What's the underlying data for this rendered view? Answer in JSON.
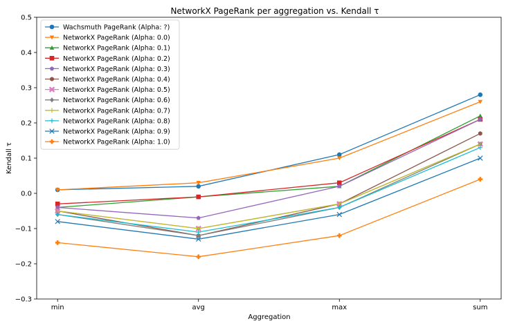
{
  "chart_data": {
    "type": "line",
    "title": "NetworkX PageRank per aggregation vs. Kendall τ",
    "xlabel": "Aggregation",
    "ylabel": "Kendall τ",
    "categories": [
      "min",
      "avg",
      "max",
      "sum"
    ],
    "ylim": [
      -0.3,
      0.5
    ],
    "yticks": [
      -0.3,
      -0.2,
      -0.1,
      0.0,
      0.1,
      0.2,
      0.3,
      0.4,
      0.5
    ],
    "ytick_labels": [
      "−0.3",
      "−0.2",
      "−0.1",
      "0.0",
      "0.1",
      "0.2",
      "0.3",
      "0.4",
      "0.5"
    ],
    "grid": false,
    "legend_position": "top-left",
    "series": [
      {
        "name": "Wachsmuth PageRank (Alpha: ?)",
        "color": "#1f77b4",
        "marker": "circle",
        "values": [
          0.01,
          0.02,
          0.11,
          0.28
        ]
      },
      {
        "name": "NetworkX PageRank (Alpha: 0.0)",
        "color": "#ff7f0e",
        "marker": "triangle-down",
        "values": [
          0.01,
          0.03,
          0.1,
          0.26
        ]
      },
      {
        "name": "NetworkX PageRank (Alpha: 0.1)",
        "color": "#2ca02c",
        "marker": "triangle-up",
        "values": [
          -0.04,
          -0.01,
          0.02,
          0.22
        ]
      },
      {
        "name": "NetworkX PageRank (Alpha: 0.2)",
        "color": "#d62728",
        "marker": "square",
        "values": [
          -0.03,
          -0.01,
          0.03,
          0.21
        ]
      },
      {
        "name": "NetworkX PageRank (Alpha: 0.3)",
        "color": "#9467bd",
        "marker": "pentagon",
        "values": [
          -0.04,
          -0.07,
          0.02,
          0.21
        ]
      },
      {
        "name": "NetworkX PageRank (Alpha: 0.4)",
        "color": "#8c564b",
        "marker": "hexagon",
        "values": [
          -0.05,
          -0.12,
          -0.03,
          0.17
        ]
      },
      {
        "name": "NetworkX PageRank (Alpha: 0.5)",
        "color": "#e377c2",
        "marker": "x-thick",
        "values": [
          -0.05,
          -0.1,
          -0.03,
          0.14
        ]
      },
      {
        "name": "NetworkX PageRank (Alpha: 0.6)",
        "color": "#7f7f7f",
        "marker": "diamond",
        "values": [
          -0.06,
          -0.12,
          -0.04,
          0.14
        ]
      },
      {
        "name": "NetworkX PageRank (Alpha: 0.7)",
        "color": "#bcbd22",
        "marker": "vline",
        "values": [
          -0.05,
          -0.1,
          -0.03,
          0.14
        ]
      },
      {
        "name": "NetworkX PageRank (Alpha: 0.8)",
        "color": "#17becf",
        "marker": "plus",
        "values": [
          -0.06,
          -0.11,
          -0.04,
          0.13
        ]
      },
      {
        "name": "NetworkX PageRank (Alpha: 0.9)",
        "color": "#1f77b4",
        "marker": "x",
        "values": [
          -0.08,
          -0.13,
          -0.06,
          0.1
        ]
      },
      {
        "name": "NetworkX PageRank (Alpha: 1.0)",
        "color": "#ff7f0e",
        "marker": "plus-filled",
        "values": [
          -0.14,
          -0.18,
          -0.12,
          0.04
        ]
      }
    ]
  }
}
